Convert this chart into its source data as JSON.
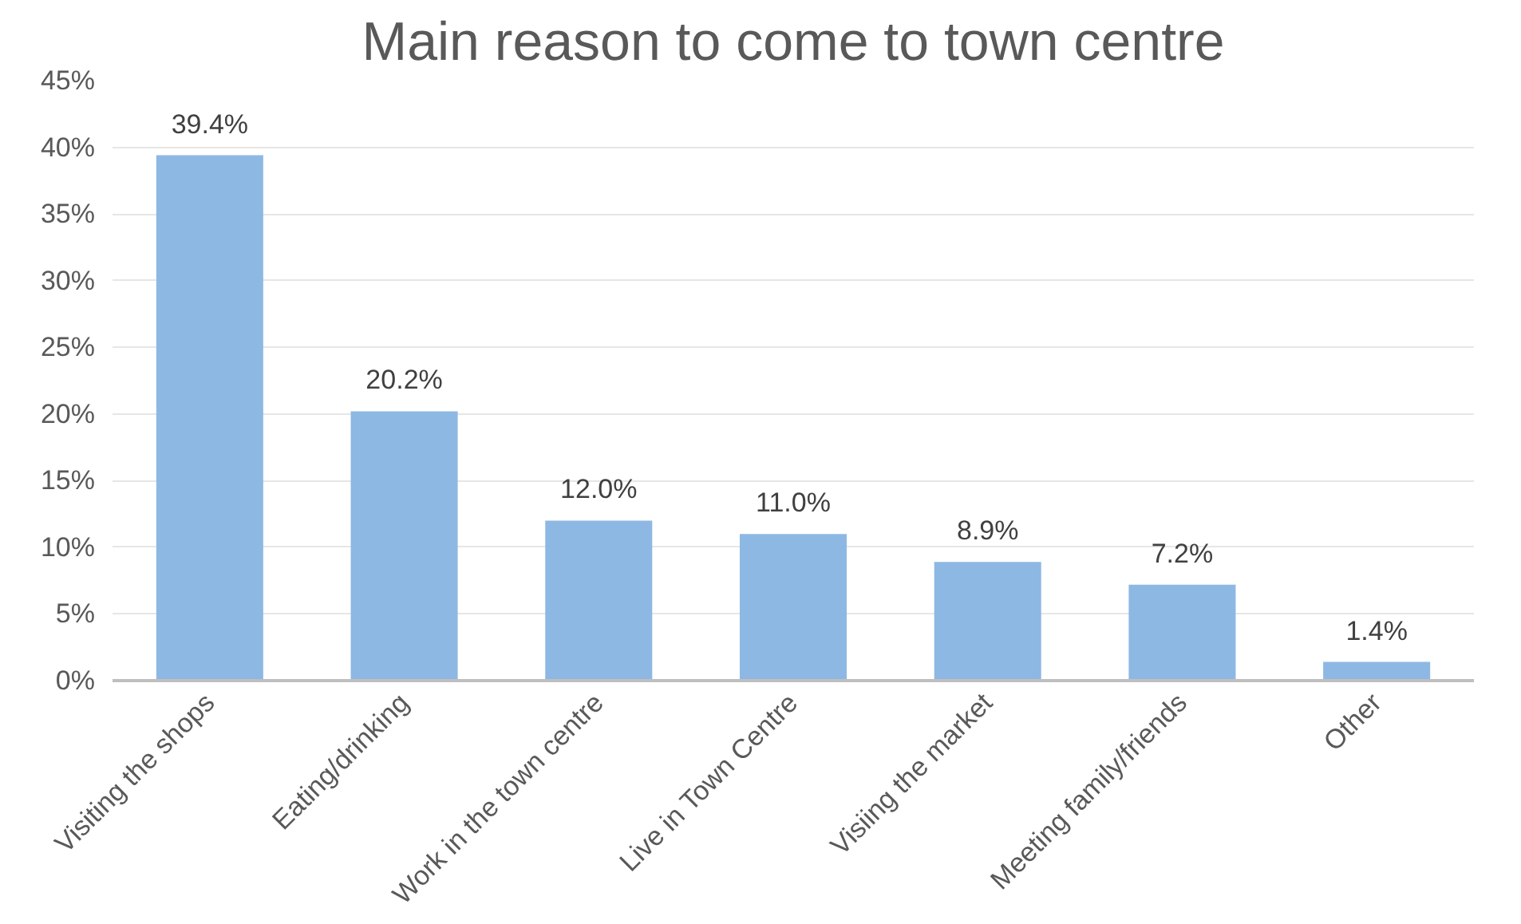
{
  "chart_data": {
    "type": "bar",
    "title": "Main reason to come to town centre",
    "categories": [
      "Visiting the shops",
      "Eating/drinking",
      "Work in the town centre",
      "Live in Town Centre",
      "Visiing the market",
      "Meeting family/friends",
      "Other"
    ],
    "values": [
      39.4,
      20.2,
      12.0,
      11.0,
      8.9,
      7.2,
      1.4
    ],
    "value_labels": [
      "39.4%",
      "20.2%",
      "12.0%",
      "11.0%",
      "8.9%",
      "7.2%",
      "1.4%"
    ],
    "color": "#8db8e3",
    "ylim": [
      0,
      45
    ],
    "yticks": [
      {
        "value": 0,
        "label": "0%"
      },
      {
        "value": 5,
        "label": "5%"
      },
      {
        "value": 10,
        "label": "10%"
      },
      {
        "value": 15,
        "label": "15%"
      },
      {
        "value": 20,
        "label": "20%"
      },
      {
        "value": 25,
        "label": "25%"
      },
      {
        "value": 30,
        "label": "30%"
      },
      {
        "value": 35,
        "label": "35%"
      },
      {
        "value": 40,
        "label": "40%"
      },
      {
        "value": 45,
        "label": "45%"
      }
    ],
    "grid": "y"
  }
}
